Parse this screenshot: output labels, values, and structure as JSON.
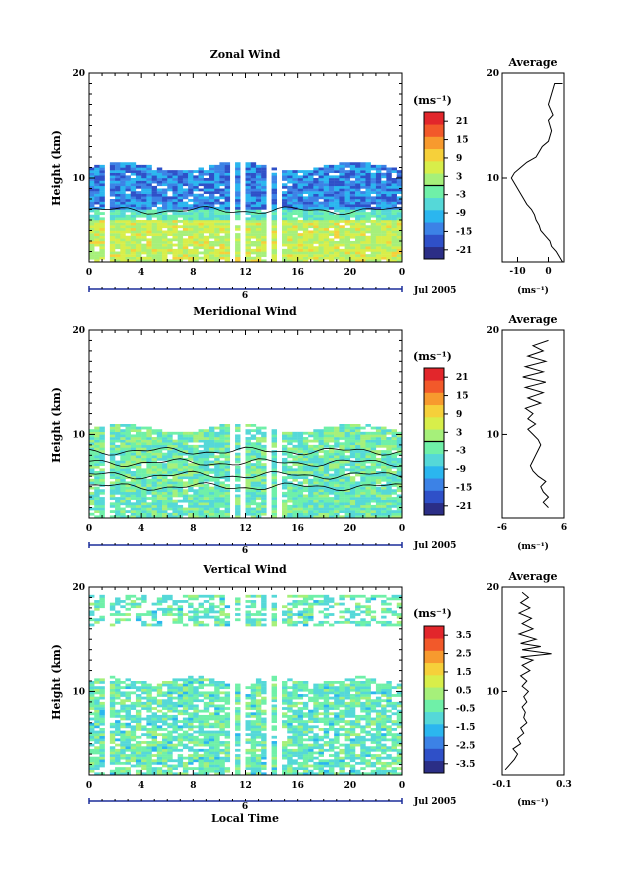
{
  "colors": {
    "scale": [
      "#2b2e86",
      "#2f50c8",
      "#3c82e6",
      "#2bb6ef",
      "#55d8d8",
      "#6ff0a8",
      "#a6f07a",
      "#d8ee4a",
      "#f6d03a",
      "#f79a2e",
      "#f2592a",
      "#e2262b"
    ],
    "background": "#ffffff",
    "trace": "#000000"
  },
  "chart_data": [
    {
      "type": "heatmap",
      "title": "Zonal Wind",
      "xlabel": "",
      "ylabel": "Height (km)",
      "xlim": [
        0,
        24
      ],
      "ylim": [
        2,
        20
      ],
      "x_ticks": [
        "0",
        "4",
        "8",
        "12",
        "16",
        "20",
        "0"
      ],
      "y_ticks": [
        "20",
        "10"
      ],
      "date_label": "6",
      "month_label": "Jul 2005",
      "colorbar": {
        "unit": "(ms⁻¹)",
        "range": [
          -24,
          24
        ],
        "ticks": [
          "21",
          "15",
          "9",
          "3",
          "-3",
          "-9",
          "-15",
          "-21"
        ],
        "marker": 0
      },
      "data_coverage_top_km": 11,
      "gaps_hours": [
        [
          1.2,
          1.6
        ],
        [
          10.8,
          11.2
        ],
        [
          11.6,
          12.0
        ],
        [
          13.6,
          14.0
        ],
        [
          14.4,
          14.8
        ]
      ],
      "profile": {
        "title": "Average",
        "xlabel": "(ms⁻¹)",
        "xlim": [
          -15,
          5
        ],
        "x_ticks": [
          "-10",
          "0"
        ],
        "y_ticks": [
          "20",
          "10"
        ],
        "ylim": [
          2,
          20
        ],
        "points": [
          [
            4.5,
            2
          ],
          [
            3.5,
            2.5
          ],
          [
            2.5,
            3
          ],
          [
            1,
            3.5
          ],
          [
            0.5,
            4
          ],
          [
            -1,
            4.5
          ],
          [
            -2.5,
            5
          ],
          [
            -3,
            5.5
          ],
          [
            -4,
            6
          ],
          [
            -4.5,
            6.5
          ],
          [
            -5.5,
            7
          ],
          [
            -7,
            7.5
          ],
          [
            -8,
            8
          ],
          [
            -9,
            8.5
          ],
          [
            -10,
            9
          ],
          [
            -11,
            9.5
          ],
          [
            -12,
            10
          ],
          [
            -11,
            10.5
          ],
          [
            -9,
            11
          ],
          [
            -7,
            11.5
          ],
          [
            -4,
            12
          ],
          [
            -2,
            13
          ],
          [
            0,
            13.5
          ],
          [
            1,
            14.5
          ],
          [
            0,
            15.5
          ],
          [
            1.5,
            16
          ],
          [
            0,
            17
          ],
          [
            1,
            18
          ],
          [
            2,
            19
          ],
          [
            4.5,
            19
          ]
        ]
      }
    },
    {
      "type": "heatmap",
      "title": "Meridional Wind",
      "xlabel": "",
      "ylabel": "Height (km)",
      "xlim": [
        0,
        24
      ],
      "ylim": [
        2,
        20
      ],
      "x_ticks": [
        "0",
        "4",
        "8",
        "12",
        "16",
        "20",
        "0"
      ],
      "y_ticks": [
        "20",
        "10"
      ],
      "date_label": "6",
      "month_label": "Jul 2005",
      "colorbar": {
        "unit": "(ms⁻¹)",
        "range": [
          -24,
          24
        ],
        "ticks": [
          "21",
          "15",
          "9",
          "3",
          "-3",
          "-9",
          "-15",
          "-21"
        ],
        "marker": 0
      },
      "data_coverage_top_km": 10.5,
      "gaps_hours": [
        [
          1.2,
          1.6
        ],
        [
          10.8,
          11.2
        ],
        [
          11.6,
          12.0
        ],
        [
          13.6,
          14.0
        ],
        [
          14.4,
          14.8
        ]
      ],
      "profile": {
        "title": "Average",
        "xlabel": "(ms⁻¹)",
        "xlim": [
          -6,
          6
        ],
        "x_ticks": [
          "-6",
          "6"
        ],
        "y_ticks": [
          "20",
          "10"
        ],
        "ylim": [
          2,
          20
        ],
        "points": [
          [
            3,
            3
          ],
          [
            2,
            3.5
          ],
          [
            3,
            4
          ],
          [
            2,
            4.5
          ],
          [
            1.5,
            5
          ],
          [
            2.5,
            5.5
          ],
          [
            1,
            6
          ],
          [
            0,
            6.5
          ],
          [
            -0.5,
            7
          ],
          [
            0,
            7.5
          ],
          [
            0.5,
            8
          ],
          [
            1,
            8.5
          ],
          [
            1.5,
            9
          ],
          [
            1,
            9.5
          ],
          [
            0,
            10
          ],
          [
            -1,
            10.5
          ],
          [
            0.5,
            11
          ],
          [
            -1,
            11.5
          ],
          [
            0,
            12
          ],
          [
            -1.5,
            12.5
          ],
          [
            1.5,
            13
          ],
          [
            -1,
            13.5
          ],
          [
            2,
            14
          ],
          [
            -1.5,
            14.5
          ],
          [
            2.5,
            15
          ],
          [
            -2,
            15.5
          ],
          [
            2,
            16
          ],
          [
            -1.5,
            16.5
          ],
          [
            2.5,
            17
          ],
          [
            -1,
            17.5
          ],
          [
            2,
            18
          ],
          [
            0,
            18.5
          ],
          [
            3,
            19
          ]
        ]
      }
    },
    {
      "type": "heatmap",
      "title": "Vertical Wind",
      "xlabel": "Local Time",
      "ylabel": "Height (km)",
      "xlim": [
        0,
        24
      ],
      "ylim": [
        2,
        20
      ],
      "x_ticks": [
        "0",
        "4",
        "8",
        "12",
        "16",
        "20",
        "0"
      ],
      "y_ticks": [
        "20",
        "10"
      ],
      "date_label": "6",
      "month_label": "Jul 2005",
      "colorbar": {
        "unit": "(ms⁻¹)",
        "range": [
          -4,
          4
        ],
        "ticks": [
          "3.5",
          "2.5",
          "1.5",
          "0.5",
          "-0.5",
          "-1.5",
          "-2.5",
          "-3.5"
        ],
        "marker": null
      },
      "data_coverage_top_km": 19.5,
      "gaps_hours": [
        [
          1.2,
          1.6
        ],
        [
          10.8,
          11.2
        ],
        [
          11.6,
          12.0
        ],
        [
          13.6,
          14.0
        ],
        [
          14.4,
          14.8
        ]
      ],
      "profile": {
        "title": "Average",
        "xlabel": "(ms⁻¹)",
        "xlim": [
          -0.1,
          0.3
        ],
        "x_ticks": [
          "-0.1",
          "0.3"
        ],
        "y_ticks": [
          "20",
          "10"
        ],
        "ylim": [
          2,
          20
        ],
        "points": [
          [
            -0.08,
            2.5
          ],
          [
            -0.05,
            3
          ],
          [
            -0.02,
            3.5
          ],
          [
            0,
            4
          ],
          [
            -0.03,
            4.5
          ],
          [
            0.02,
            5
          ],
          [
            0.0,
            5.5
          ],
          [
            0.04,
            6
          ],
          [
            0.02,
            6.5
          ],
          [
            0.06,
            7
          ],
          [
            0.04,
            7.5
          ],
          [
            0.05,
            8
          ],
          [
            0.03,
            8.5
          ],
          [
            0.06,
            9
          ],
          [
            0.04,
            9.5
          ],
          [
            0.07,
            10
          ],
          [
            0.03,
            10.5
          ],
          [
            0.06,
            11
          ],
          [
            0.02,
            11.5
          ],
          [
            0.08,
            12
          ],
          [
            0.03,
            12.5
          ],
          [
            0.1,
            13
          ],
          [
            0.02,
            13.3
          ],
          [
            0.22,
            13.6
          ],
          [
            0.03,
            14
          ],
          [
            0.15,
            14.3
          ],
          [
            0.02,
            14.6
          ],
          [
            0.12,
            15
          ],
          [
            0.01,
            15.5
          ],
          [
            0.1,
            16
          ],
          [
            0.03,
            16.5
          ],
          [
            0.09,
            17
          ],
          [
            0.01,
            17.5
          ],
          [
            0.08,
            18
          ],
          [
            0.02,
            18.5
          ],
          [
            0.07,
            19
          ],
          [
            0.03,
            19.5
          ]
        ]
      }
    }
  ]
}
